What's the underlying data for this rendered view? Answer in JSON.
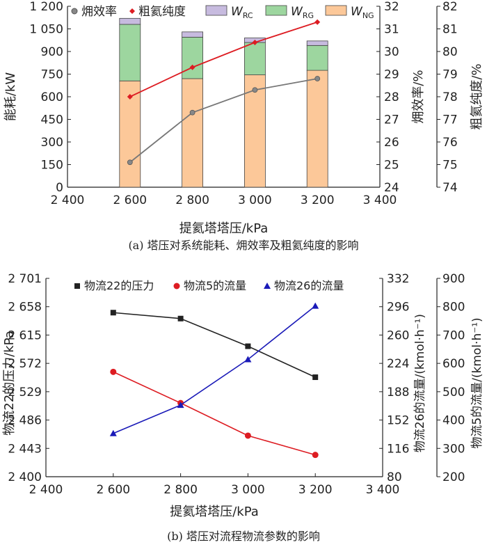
{
  "captions": {
    "a": "(a) 塔压对系统能耗、㶲效率及粗氦纯度的影响",
    "b": "(b) 塔压对流程物流参数的影响"
  },
  "colors": {
    "NG": "#fcc899",
    "RG": "#9dd69f",
    "RC": "#c7bbdf",
    "exergy": "#777777",
    "purity": "#dd1c22",
    "s22": "#222222",
    "s5": "#dd1c22",
    "s26": "#1a1ab8"
  },
  "chart_data": [
    {
      "id": "a",
      "type": "bar",
      "stacked": true,
      "xlabel": "提氦塔塔压/kPa",
      "ylabel": "能耗/kW",
      "ylabel_right": "㶲效率/%",
      "ylabel_right2": "粗氦纯度/%",
      "xlim": [
        2400,
        3400
      ],
      "ylim": [
        0,
        1200
      ],
      "ylim_right": [
        24,
        32
      ],
      "ylim_right2": [
        74,
        82
      ],
      "x_ticks": [
        2400,
        2600,
        2800,
        3000,
        3200,
        3400
      ],
      "x_tick_labels": [
        "2 400",
        "2 600",
        "2 800",
        "3 000",
        "3 200",
        "3 400"
      ],
      "y_ticks": [
        0,
        150,
        300,
        450,
        600,
        750,
        900,
        1050,
        1200
      ],
      "y_tick_labels": [
        "0",
        "150",
        "300",
        "450",
        "600",
        "750",
        "900",
        "1 050",
        "1 200"
      ],
      "y_ticks_right": [
        24,
        25,
        26,
        27,
        28,
        29,
        30,
        31,
        32
      ],
      "y_ticks_right2": [
        74,
        75,
        76,
        77,
        78,
        79,
        80,
        81,
        82
      ],
      "x": [
        2600,
        2800,
        3000,
        3200
      ],
      "series": [
        {
          "name": "W_NG",
          "label_main": "W",
          "label_sub": "NG",
          "kind": "bar",
          "values": [
            705,
            720,
            745,
            775
          ]
        },
        {
          "name": "W_RG",
          "label_main": "W",
          "label_sub": "RG",
          "kind": "bar",
          "values": [
            375,
            275,
            215,
            165
          ]
        },
        {
          "name": "W_RC",
          "label_main": "W",
          "label_sub": "RC",
          "kind": "bar",
          "values": [
            40,
            35,
            30,
            30
          ]
        },
        {
          "name": "㶲效率",
          "kind": "line",
          "axis": "right",
          "values": [
            25.1,
            27.3,
            28.3,
            28.8
          ]
        },
        {
          "name": "粗氦纯度",
          "kind": "line",
          "axis": "right2",
          "values": [
            78.0,
            79.3,
            80.4,
            81.3
          ]
        }
      ],
      "legend": "top"
    },
    {
      "id": "b",
      "type": "line",
      "xlabel": "提氦塔塔压/kPa",
      "ylabel": "物流22的压力/kPa",
      "ylabel_right": "物流26的流量/(kmol·h⁻¹)",
      "ylabel_right2": "物流5的流量/(kmol·h⁻¹)",
      "xlim": [
        2400,
        3400
      ],
      "ylim": [
        2400,
        2701
      ],
      "ylim_right": [
        80,
        332
      ],
      "ylim_right2": [
        200,
        900
      ],
      "x_ticks": [
        2400,
        2600,
        2800,
        3000,
        3200,
        3400
      ],
      "x_tick_labels": [
        "2 400",
        "2 600",
        "2 800",
        "3 000",
        "3 200",
        "3 400"
      ],
      "y_ticks": [
        2400,
        2443,
        2486,
        2529,
        2572,
        2615,
        2658,
        2701
      ],
      "y_tick_labels": [
        "2 400",
        "2 443",
        "2 486",
        "2 529",
        "2 572",
        "2 615",
        "2 658",
        "2 701"
      ],
      "y_ticks_right": [
        80,
        116,
        152,
        188,
        224,
        260,
        296,
        332
      ],
      "y_ticks_right2": [
        200,
        300,
        400,
        500,
        600,
        700,
        800,
        900
      ],
      "x": [
        2600,
        2800,
        3000,
        3200
      ],
      "series": [
        {
          "name": "物流22的压力",
          "axis": "left",
          "marker": "square",
          "values": [
            2649,
            2640,
            2598,
            2551
          ]
        },
        {
          "name": "物流5的流量",
          "axis": "right2",
          "marker": "circle",
          "values": [
            570,
            460,
            345,
            277
          ]
        },
        {
          "name": "物流26的流量",
          "axis": "right",
          "marker": "triangle",
          "values": [
            135,
            171,
            229,
            297
          ]
        }
      ],
      "legend": "top"
    }
  ]
}
